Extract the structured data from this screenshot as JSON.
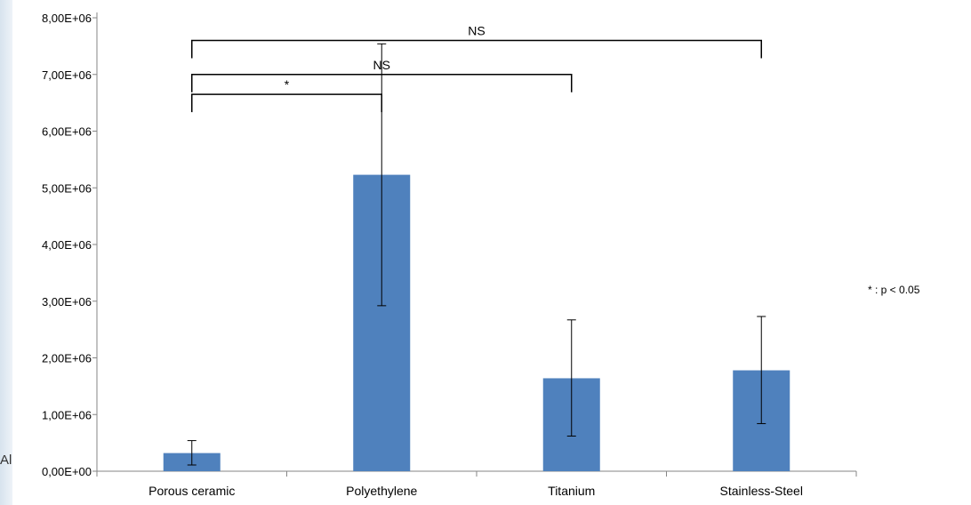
{
  "stray_text": "Al",
  "chart_data": {
    "type": "bar",
    "categories": [
      "Porous ceramic",
      "Polyethylene",
      "Titanium",
      "Stainless-Steel"
    ],
    "series": [
      {
        "values": [
          320000,
          5230000,
          1640000,
          1780000
        ],
        "error_low": [
          110000,
          2920000,
          620000,
          840000
        ],
        "error_high": [
          540000,
          7540000,
          2670000,
          2730000
        ]
      }
    ],
    "y_tick_labels": [
      "0,00E+00",
      "1,00E+06",
      "2,00E+06",
      "3,00E+06",
      "4,00E+06",
      "5,00E+06",
      "6,00E+06",
      "7,00E+06",
      "8,00E+06"
    ],
    "ylim": [
      0,
      8000000
    ],
    "title": "",
    "xlabel": "",
    "ylabel": "",
    "grid": false,
    "legend": "none",
    "bar_color": "#4f81bd",
    "significance": [
      {
        "from": 0,
        "to": 3,
        "label": "NS",
        "level": 7600000
      },
      {
        "from": 0,
        "to": 2,
        "label": "NS",
        "level": 7000000
      },
      {
        "from": 0,
        "to": 1,
        "label": "*",
        "level": 6650000
      }
    ],
    "footnote": "* : p < 0.05"
  }
}
